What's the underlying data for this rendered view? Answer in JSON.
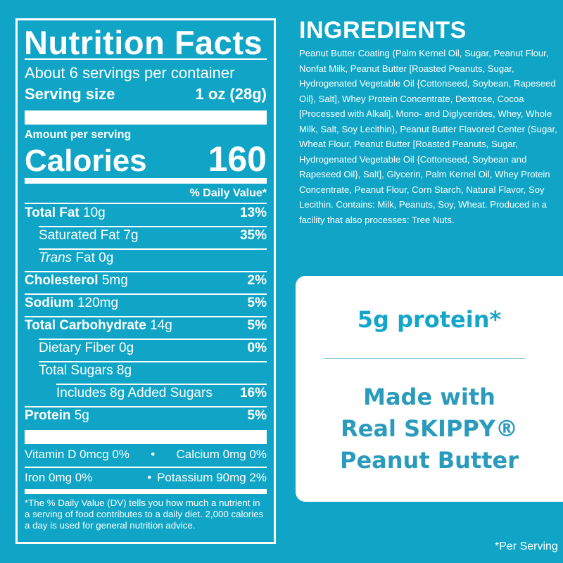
{
  "nutrition": {
    "title": "Nutrition Facts",
    "servings": "About 6 servings per container",
    "serving_size_label": "Serving size",
    "serving_size_value": "1 oz (28g)",
    "amount_per_serving": "Amount per serving",
    "calories_label": "Calories",
    "calories_value": "160",
    "dv_header": "% Daily Value*",
    "rows": [
      {
        "label": "Total Fat",
        "amount": "10g",
        "dv": "13%"
      },
      {
        "label": "Saturated Fat",
        "amount": "7g",
        "dv": "35%"
      },
      {
        "label": "Trans",
        "amount": "Fat 0g",
        "dv": ""
      },
      {
        "label": "Cholesterol",
        "amount": "5mg",
        "dv": "2%"
      },
      {
        "label": "Sodium",
        "amount": "120mg",
        "dv": "5%"
      },
      {
        "label": "Total Carbohydrate",
        "amount": "14g",
        "dv": "5%"
      },
      {
        "label": "Dietary Fiber",
        "amount": "0g",
        "dv": "0%"
      },
      {
        "label": "Total Sugars",
        "amount": "8g",
        "dv": ""
      },
      {
        "label": "Includes 8g Added Sugars",
        "amount": "",
        "dv": "16%"
      },
      {
        "label": "Protein",
        "amount": "5g",
        "dv": "5%"
      }
    ],
    "vitamin_d": "Vitamin D 0mcg 0%",
    "calcium": "Calcium 0mg 0%",
    "iron": "Iron 0mg 0%",
    "potassium": "Potassium 90mg 2%",
    "bullet": "•",
    "footnote": "*The % Daily Value (DV) tells you how much a nutrient in a serving of food contributes to a daily diet. 2,000 calories a day is used for general nutrition advice."
  },
  "ingredients": {
    "heading": "INGREDIENTS",
    "text": "Peanut Butter Coating (Palm Kernel Oil, Sugar, Peanut Flour, Nonfat Milk, Peanut Butter [Roasted Peanuts, Sugar, Hydrogenated Vegetable Oil {Cottonseed, Soybean, Rapeseed Oil}, Salt], Whey Protein Concentrate, Dextrose, Cocoa [Processed with Alkali], Mono- and Diglycerides, Whey, Whole Milk, Salt, Soy Lecithin), Peanut Butter Flavored Center (Sugar, Wheat Flour, Peanut Butter [Roasted Peanuts, Sugar, Hydrogenated Vegetable Oil {Cottonseed, Soybean and Rapeseed Oil}, Salt], Glycerin, Palm Kernel Oil, Whey Protein Concentrate, Peanut Flour, Corn Starch, Natural Flavor, Soy Lecithin. Contains: Milk, Peanuts, Soy, Wheat. Produced in a facility that also processes: Tree Nuts."
  },
  "callout": {
    "protein": "5g protein*",
    "line1": "Made with",
    "line2": "Real SKIPPY®",
    "line3": "Peanut Butter"
  },
  "per_serving_note": "*Per Serving",
  "colors": {
    "background": "#10a5c6",
    "card": "#ffffff",
    "callout_text": "#14a6c8",
    "callout_text_secondary": "#2a9bbd"
  }
}
